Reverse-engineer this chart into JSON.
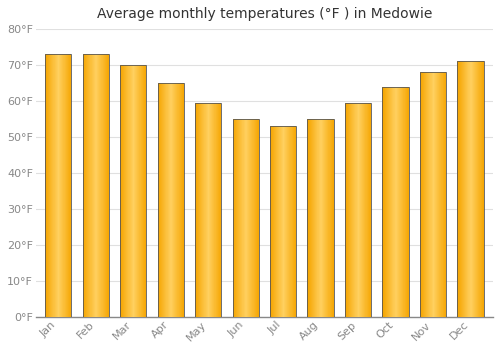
{
  "title": "Average monthly temperatures (°F ) in Medowie",
  "months": [
    "Jan",
    "Feb",
    "Mar",
    "Apr",
    "May",
    "Jun",
    "Jul",
    "Aug",
    "Sep",
    "Oct",
    "Nov",
    "Dec"
  ],
  "values": [
    73,
    73,
    70,
    65,
    59.5,
    55,
    53,
    55,
    59.5,
    64,
    68,
    71
  ],
  "bar_color_left": "#F5A500",
  "bar_color_center": "#FFD060",
  "bar_color_right": "#F5A500",
  "bar_edge_color": "#555555",
  "ylim": [
    0,
    80
  ],
  "yticks": [
    0,
    10,
    20,
    30,
    40,
    50,
    60,
    70,
    80
  ],
  "ytick_labels": [
    "0°F",
    "10°F",
    "20°F",
    "30°F",
    "40°F",
    "50°F",
    "60°F",
    "70°F",
    "80°F"
  ],
  "background_color": "#FFFFFF",
  "grid_color": "#E0E0E0",
  "title_fontsize": 10,
  "tick_fontsize": 8,
  "tick_color": "#888888",
  "bar_width": 0.7
}
